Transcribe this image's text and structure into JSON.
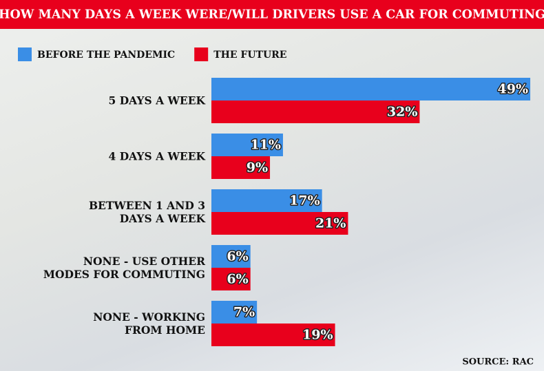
{
  "chart_data": {
    "type": "bar",
    "orientation": "horizontal",
    "title": "HOW MANY DAYS A WEEK WERE/WILL DRIVERS USE A CAR FOR COMMUTING",
    "categories": [
      "5 DAYS A WEEK",
      "4 DAYS A WEEK",
      "BETWEEN 1 AND 3\nDAYS A WEEK",
      "NONE - USE OTHER\nMODES FOR COMMUTING",
      "NONE - WORKING\nFROM HOME"
    ],
    "series": [
      {
        "name": "BEFORE THE PANDEMIC",
        "color": "#3a8ee6",
        "values": [
          49,
          11,
          17,
          6,
          7
        ],
        "value_labels": [
          "49%",
          "11%",
          "17%",
          "6%",
          "7%"
        ]
      },
      {
        "name": "THE FUTURE",
        "color": "#e8001c",
        "values": [
          32,
          9,
          21,
          6,
          19
        ],
        "value_labels": [
          "32%",
          "9%",
          "21%",
          "6%",
          "19%"
        ]
      }
    ],
    "source": "SOURCE: RAC"
  }
}
